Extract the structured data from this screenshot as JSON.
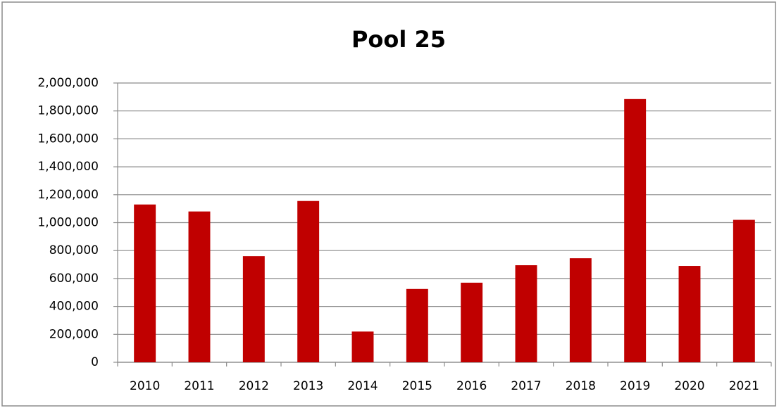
{
  "chart_data": {
    "type": "bar",
    "title": "Pool 25",
    "categories": [
      "2010",
      "2011",
      "2012",
      "2013",
      "2014",
      "2015",
      "2016",
      "2017",
      "2018",
      "2019",
      "2020",
      "2021"
    ],
    "values": [
      1130000,
      1080000,
      760000,
      1155000,
      220000,
      525000,
      570000,
      695000,
      745000,
      1885000,
      690000,
      1020000
    ],
    "color": "#c00000",
    "ylim": [
      0,
      2000000
    ],
    "yticks": [
      0,
      {
        "value": 200000,
        "label": "200,000"
      },
      {
        "value": 400000,
        "label": "400,000"
      },
      {
        "value": 600000,
        "label": "600,000"
      },
      {
        "value": 800000,
        "label": "800,000"
      },
      {
        "value": 1000000,
        "label": "1,000,000"
      },
      {
        "value": 1200000,
        "label": "1,200,000"
      },
      {
        "value": 1400000,
        "label": "1,400,000"
      },
      {
        "value": 1600000,
        "label": "1,600,000"
      },
      {
        "value": 1800000,
        "label": "1,800,000"
      },
      {
        "value": 2000000,
        "label": "2,000,000"
      }
    ],
    "grid": true
  }
}
